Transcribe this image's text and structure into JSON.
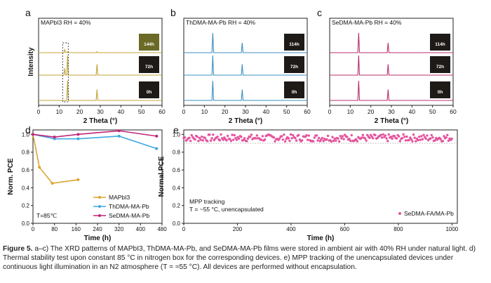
{
  "figure": {
    "caption_label": "Figure 5.",
    "caption_text": "a–c) The XRD patterns of MAPbI3, ThDMA-MA-Pb, and SeDMA-MA-Pb films were stored in ambient air with 40% RH under natural light. d) Thermal stability test upon constant 85 °C in nitrogen box for the corresponding devices. e) MPP tracking of the unencapsulated devices under continuous light illumination in an N2 atmosphere (T = ≈55 °C). All devices are performed without encapsulation."
  },
  "colors": {
    "mapbi3": "#d9a530",
    "thdma": "#3fa9e0",
    "sedma": "#c2257a",
    "xrd_a": "#c2a538",
    "xrd_b": "#3f8fc0",
    "xrd_c": "#b8306e",
    "mpp": "#e4549e"
  },
  "chart_data": [
    {
      "panel": "a",
      "type": "line",
      "title": "MAPbI3  RH = 40%",
      "xlabel": "2 Theta (°)",
      "ylabel": "Intensity",
      "xlim": [
        0,
        60
      ],
      "xticks": [
        "0",
        "10",
        "20",
        "30",
        "40",
        "50",
        "60"
      ],
      "series": [
        {
          "name": "0h",
          "peaks": [
            {
              "x": 14.1,
              "h": 1.0
            },
            {
              "x": 28.4,
              "h": 0.55
            }
          ]
        },
        {
          "name": "72h",
          "peaks": [
            {
              "x": 12.7,
              "h": 0.35
            },
            {
              "x": 14.1,
              "h": 1.0
            },
            {
              "x": 28.4,
              "h": 0.55
            }
          ]
        },
        {
          "name": "144h",
          "peaks": [
            {
              "x": 12.7,
              "h": 0.15
            },
            {
              "x": 14.1,
              "h": 0.05
            },
            {
              "x": 28.4,
              "h": 0.05
            }
          ]
        }
      ],
      "annotation": "dashed box near 12.7°"
    },
    {
      "panel": "b",
      "type": "line",
      "title": "ThDMA-MA-Pb  RH = 40%",
      "xlabel": "2 Theta (°)",
      "ylabel": "",
      "xlim": [
        0,
        60
      ],
      "xticks": [
        "0",
        "10",
        "20",
        "30",
        "40",
        "50",
        "60"
      ],
      "series": [
        {
          "name": "0h",
          "peaks": [
            {
              "x": 14.1,
              "h": 1.0
            },
            {
              "x": 28.4,
              "h": 0.55
            }
          ]
        },
        {
          "name": "72h",
          "peaks": [
            {
              "x": 14.1,
              "h": 1.0
            },
            {
              "x": 28.4,
              "h": 0.55
            }
          ]
        },
        {
          "name": "114h",
          "peaks": [
            {
              "x": 14.1,
              "h": 1.0
            },
            {
              "x": 28.4,
              "h": 0.5
            }
          ]
        }
      ]
    },
    {
      "panel": "c",
      "type": "line",
      "title": "SeDMA-MA-Pb  RH = 40%",
      "xlabel": "2 Theta (°)",
      "ylabel": "",
      "xlim": [
        0,
        60
      ],
      "xticks": [
        "0",
        "10",
        "20",
        "30",
        "40",
        "50",
        "60"
      ],
      "series": [
        {
          "name": "0h",
          "peaks": [
            {
              "x": 14.1,
              "h": 1.0
            },
            {
              "x": 28.4,
              "h": 0.55
            }
          ]
        },
        {
          "name": "72h",
          "peaks": [
            {
              "x": 14.1,
              "h": 1.0
            },
            {
              "x": 28.4,
              "h": 0.55
            }
          ]
        },
        {
          "name": "114h",
          "peaks": [
            {
              "x": 14.1,
              "h": 1.0
            },
            {
              "x": 28.4,
              "h": 0.5
            }
          ]
        }
      ]
    },
    {
      "panel": "d",
      "type": "line",
      "xlabel": "Time (h)",
      "ylabel": "Norm. PCE",
      "xlim": [
        0,
        480
      ],
      "ylim": [
        0.0,
        1.05
      ],
      "xticks": [
        "0",
        "80",
        "160",
        "240",
        "320",
        "400",
        "480"
      ],
      "yticks": [
        "0.0",
        "0.2",
        "0.4",
        "0.6",
        "0.8",
        "1.0"
      ],
      "annotation": "T=85℃",
      "series": [
        {
          "name": "MAPbI3",
          "x": [
            0,
            24,
            72,
            168
          ],
          "y": [
            1.0,
            0.63,
            0.45,
            0.49
          ]
        },
        {
          "name": "ThDMA-MA-Pb",
          "x": [
            0,
            80,
            168,
            320,
            460
          ],
          "y": [
            1.0,
            0.95,
            0.95,
            0.98,
            0.84
          ]
        },
        {
          "name": "SeDMA-MA-Pb",
          "x": [
            0,
            80,
            168,
            320,
            460
          ],
          "y": [
            1.0,
            0.97,
            1.0,
            1.04,
            0.98
          ]
        }
      ]
    },
    {
      "panel": "e",
      "type": "scatter",
      "xlabel": "Time (h)",
      "ylabel": "Normal.PCE",
      "xlim": [
        0,
        1020
      ],
      "ylim": [
        0.0,
        1.05
      ],
      "xticks": [
        "0",
        "200",
        "400",
        "600",
        "800",
        "1000"
      ],
      "yticks": [
        "0.0",
        "0.2",
        "0.4",
        "0.6",
        "0.8",
        "1.0"
      ],
      "annotation_line1": "MPP tracking",
      "annotation_line2": "T = ~55 °C, unencapsulated",
      "series": [
        {
          "name": "SeDMA-FA/MA-Pb",
          "x_start": 0,
          "x_end": 1000,
          "y_mean": 0.96,
          "y_spread": 0.04
        }
      ],
      "reference_line_y": 0.9
    }
  ]
}
